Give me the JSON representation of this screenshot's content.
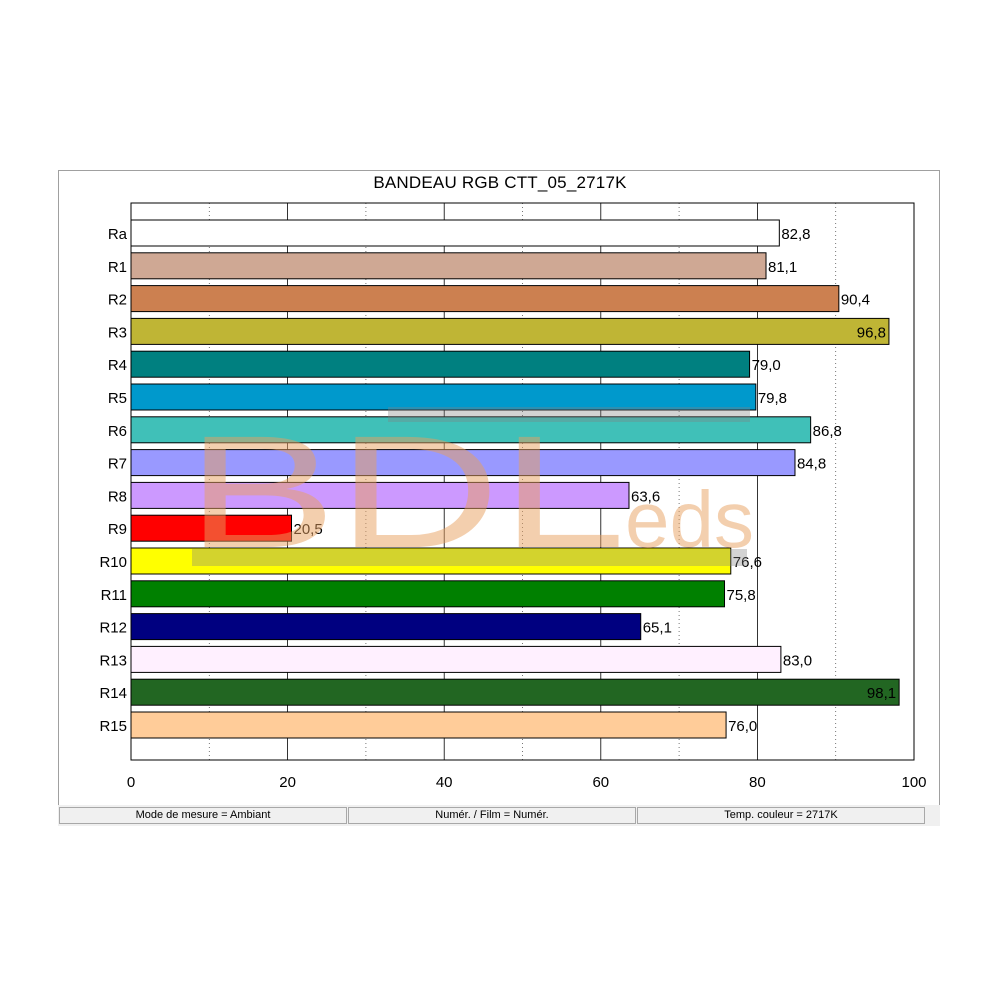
{
  "chart_data": {
    "type": "bar",
    "orientation": "horizontal",
    "title": "BANDEAU RGB CTT_05_2717K",
    "categories": [
      "Ra",
      "R1",
      "R2",
      "R3",
      "R4",
      "R5",
      "R6",
      "R7",
      "R8",
      "R9",
      "R10",
      "R11",
      "R12",
      "R13",
      "R14",
      "R15"
    ],
    "values": [
      82.8,
      81.1,
      90.4,
      96.8,
      79.0,
      79.8,
      86.8,
      84.8,
      63.6,
      20.5,
      76.6,
      75.8,
      65.1,
      83.0,
      98.1,
      76.0
    ],
    "value_labels": [
      "82,8",
      "81,1",
      "90,4",
      "96,8",
      "79,0",
      "79,8",
      "86,8",
      "84,8",
      "63,6",
      "20,5",
      "76,6",
      "75,8",
      "65,1",
      "83,0",
      "98,1",
      "76,0"
    ],
    "colors": [
      "#ffffff",
      "#cfa894",
      "#cc8050",
      "#bfb535",
      "#008080",
      "#0099cc",
      "#40c0b8",
      "#9999ff",
      "#cc99ff",
      "#ff0000",
      "#ffff00",
      "#008000",
      "#000080",
      "#fff0ff",
      "#226622",
      "#ffcc99"
    ],
    "label_inside": [
      false,
      false,
      false,
      true,
      false,
      false,
      false,
      false,
      false,
      false,
      false,
      false,
      false,
      false,
      true,
      false
    ],
    "xlim": [
      0,
      100
    ],
    "xticks": [
      0,
      20,
      40,
      60,
      80,
      100
    ],
    "xtick_labels": [
      "0",
      "20",
      "40",
      "60",
      "80",
      "100"
    ],
    "xlabel": "",
    "ylabel": "",
    "grid": "vertical",
    "legend": "none"
  },
  "status": {
    "mode": "Mode de mesure = Ambiant",
    "film": "Numér. / Film = Numér.",
    "temp": "Temp. couleur = 2717K"
  },
  "watermark": {
    "text_main": "BDL",
    "text_small": "eds",
    "color": "#e8a060"
  }
}
